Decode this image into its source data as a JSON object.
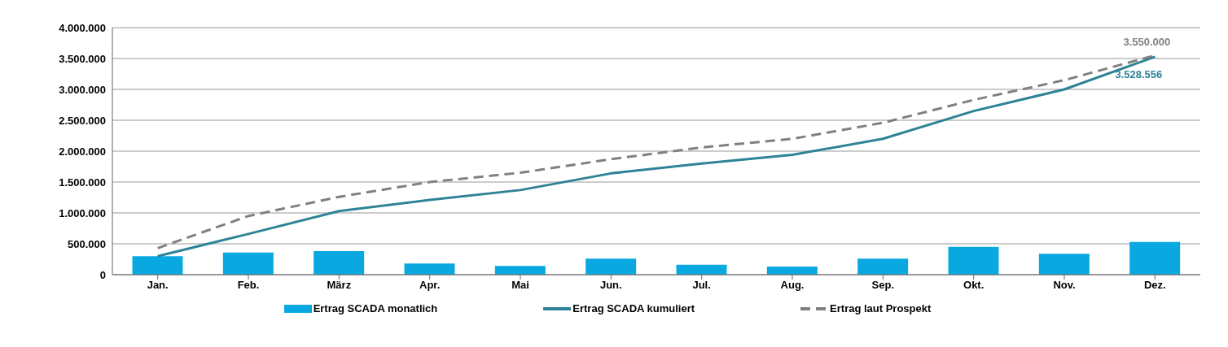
{
  "chart_data": {
    "type": "bar",
    "categories": [
      "Jan.",
      "Feb.",
      "März",
      "Apr.",
      "Mai",
      "Jun.",
      "Jul.",
      "Aug.",
      "Sep.",
      "Okt.",
      "Nov.",
      "Dez."
    ],
    "series": [
      {
        "name": "Ertrag SCADA monatlich",
        "color": "#0aa8e0",
        "values": [
          300000,
          360000,
          380000,
          180000,
          140000,
          260000,
          160000,
          130000,
          260000,
          450000,
          340000,
          530000
        ]
      },
      {
        "name": "Ertrag SCADA kumuliert",
        "type": "line",
        "color": "#2f8397",
        "line_style": "solid",
        "values": [
          300000,
          660000,
          1030000,
          1210000,
          1370000,
          1640000,
          1800000,
          1940000,
          2200000,
          2650000,
          3000000,
          3528556
        ],
        "value_labels": [
          null,
          null,
          null,
          null,
          null,
          null,
          null,
          null,
          null,
          null,
          null,
          "3.528.556"
        ]
      },
      {
        "name": "Ertrag laut Prospekt",
        "type": "line",
        "color": "#808080",
        "line_style": "dashed",
        "values": [
          430000,
          950000,
          1260000,
          1500000,
          1650000,
          1870000,
          2060000,
          2200000,
          2460000,
          2830000,
          3150000,
          3550000
        ],
        "value_labels": [
          null,
          null,
          null,
          null,
          null,
          null,
          null,
          null,
          null,
          null,
          null,
          "3.550.000"
        ]
      }
    ],
    "ylim": [
      0,
      4000000
    ],
    "yticks": [
      {
        "value": 0,
        "label": "0"
      },
      {
        "value": 500000,
        "label": "500.000"
      },
      {
        "value": 1000000,
        "label": "1.000.000"
      },
      {
        "value": 1500000,
        "label": "1.500.000"
      },
      {
        "value": 2000000,
        "label": "2.000.000"
      },
      {
        "value": 2500000,
        "label": "2.500.000"
      },
      {
        "value": 3000000,
        "label": "3.000.000"
      },
      {
        "value": 3500000,
        "label": "3.500.000"
      },
      {
        "value": 4000000,
        "label": "4.000.000"
      }
    ],
    "grid": "y",
    "legend": "bottom",
    "marker": "none"
  }
}
